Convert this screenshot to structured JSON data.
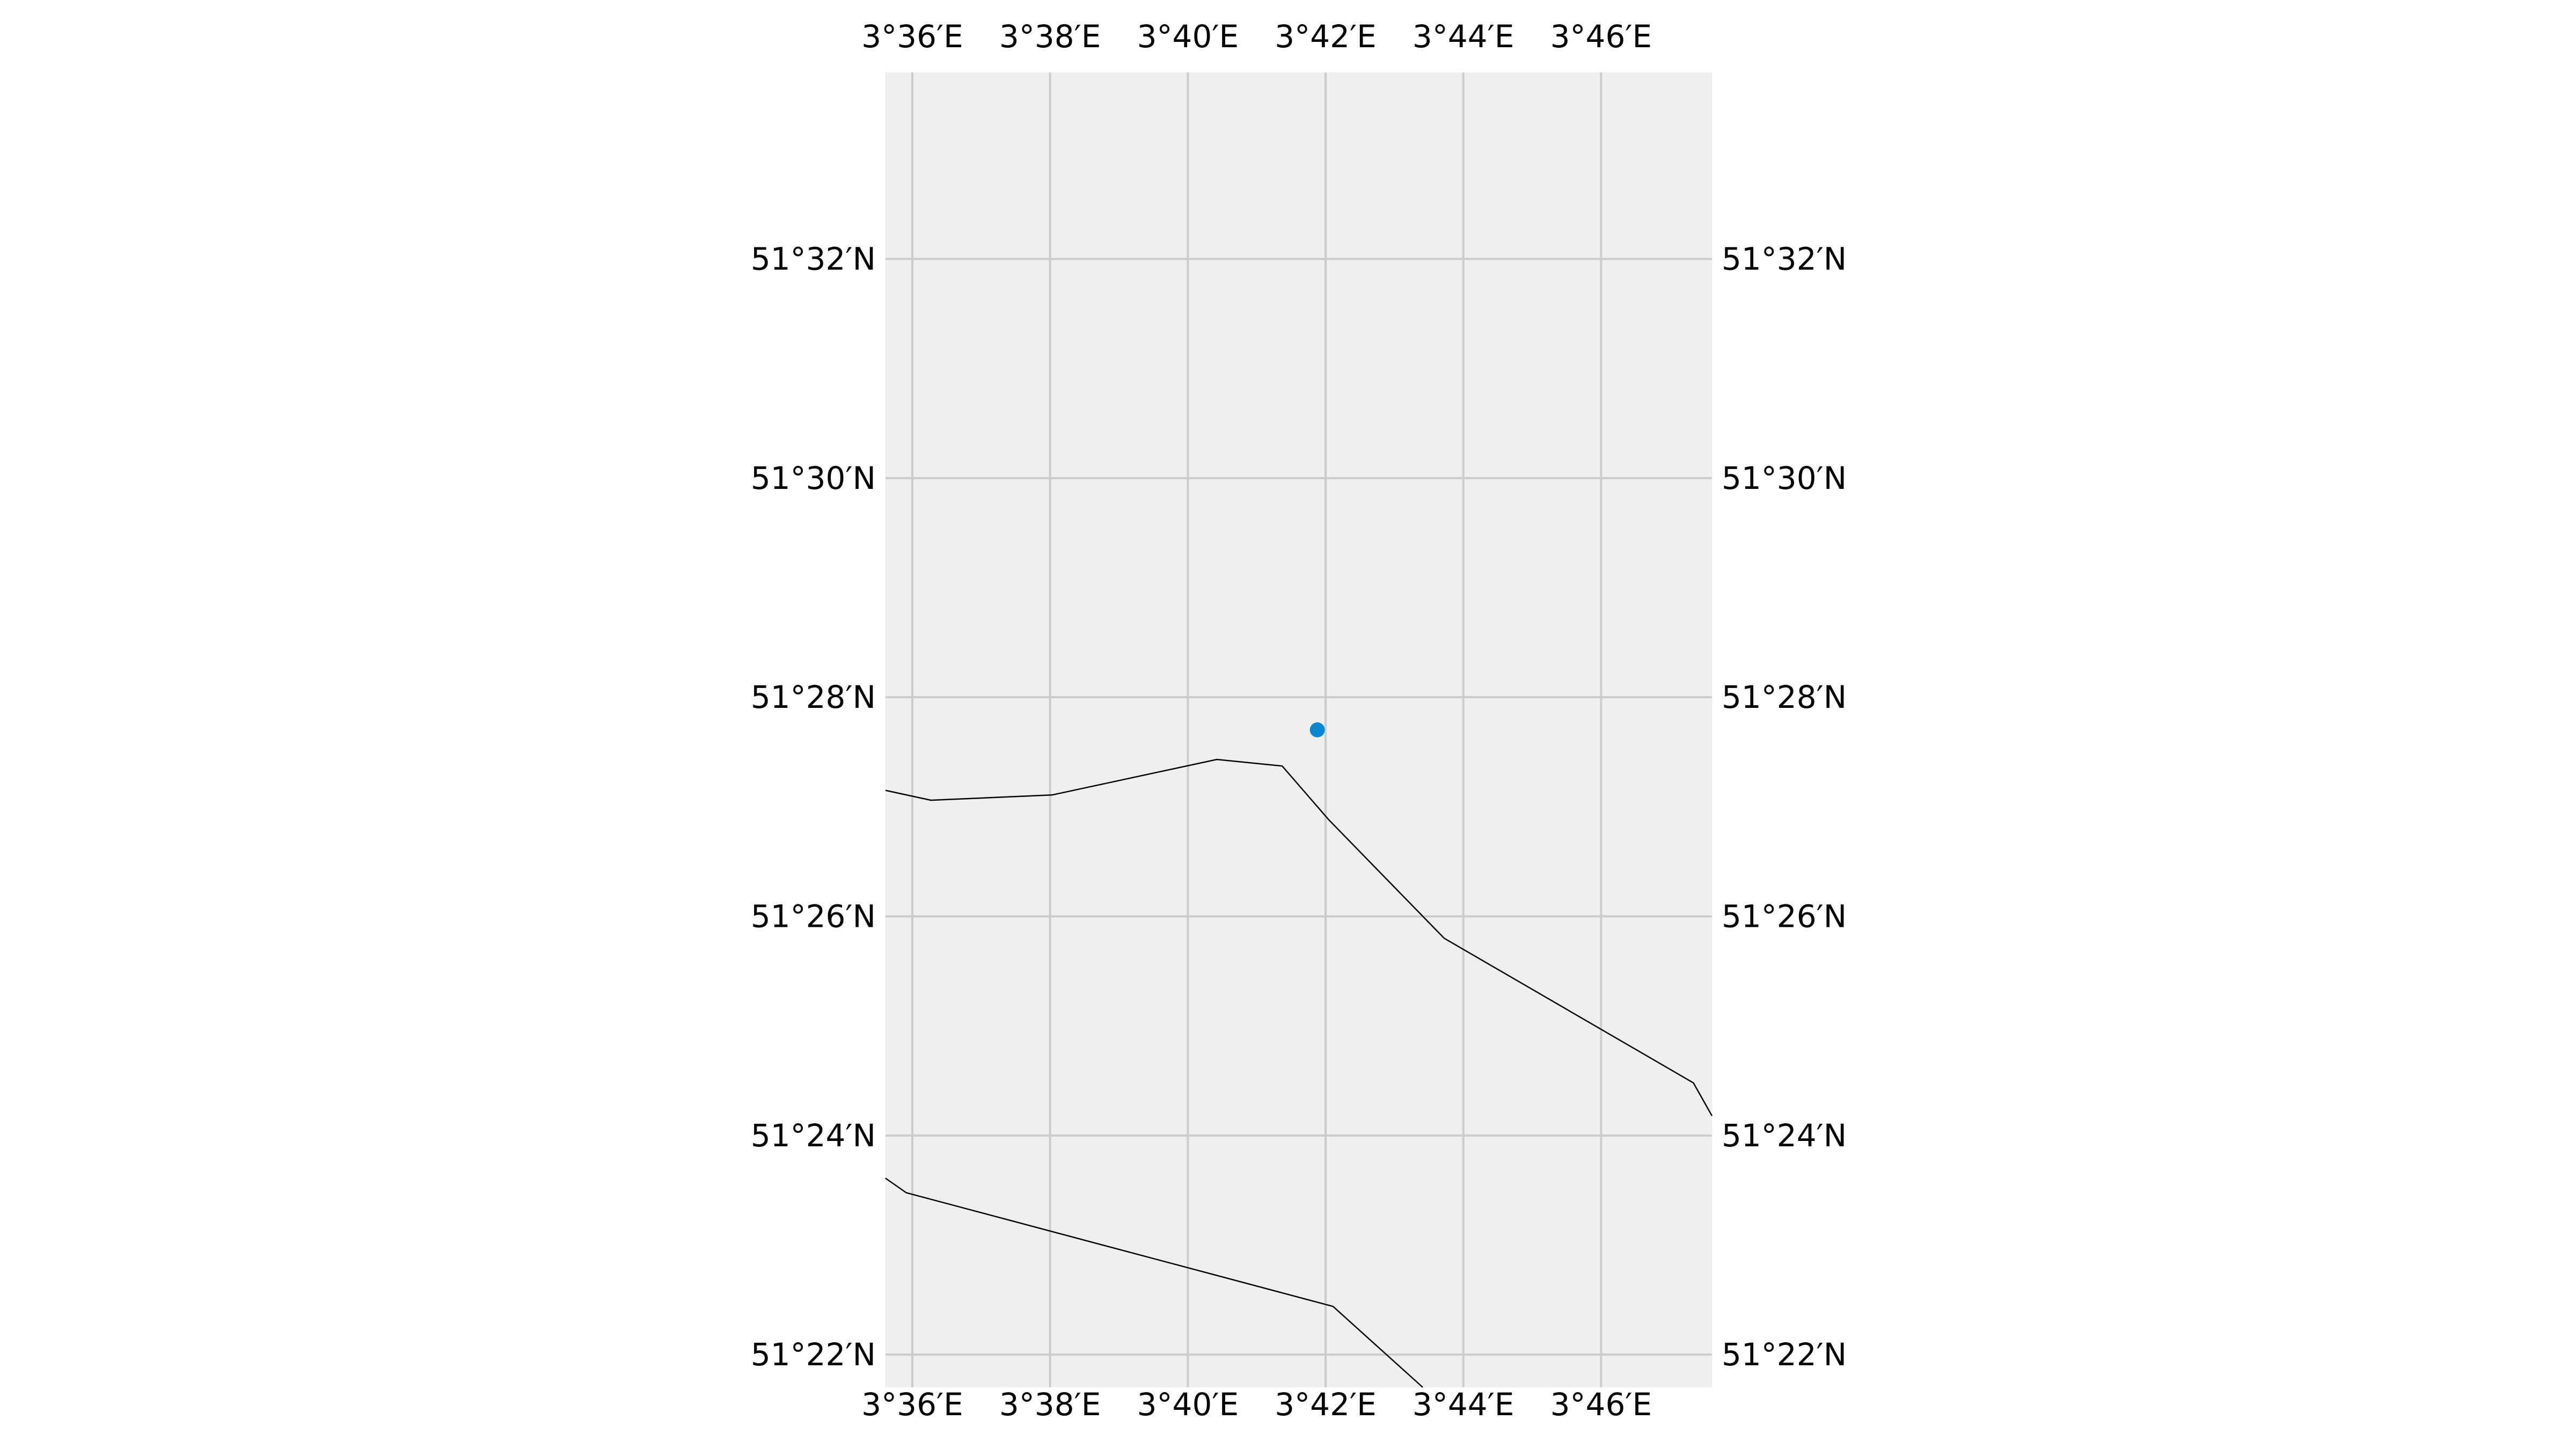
{
  "map": {
    "projection": "PlateCarree",
    "extent": {
      "lon_min": 3.5935,
      "lon_max": 3.7935,
      "lat_min": 51.3617,
      "lat_max": 51.5617
    },
    "background_color": "#efefef",
    "gridline_color": "#cccccc",
    "coastline_color": "#000000",
    "marker_color": "#0b87cf",
    "grid": true,
    "x_ticks": [
      {
        "value": 3.6,
        "label": "3°36′E"
      },
      {
        "value": 3.63333,
        "label": "3°38′E"
      },
      {
        "value": 3.66667,
        "label": "3°40′E"
      },
      {
        "value": 3.7,
        "label": "3°42′E"
      },
      {
        "value": 3.73333,
        "label": "3°44′E"
      },
      {
        "value": 3.76667,
        "label": "3°46′E"
      }
    ],
    "y_ticks": [
      {
        "value": 51.36667,
        "label": "51°22′N"
      },
      {
        "value": 51.4,
        "label": "51°24′N"
      },
      {
        "value": 51.43333,
        "label": "51°26′N"
      },
      {
        "value": 51.46667,
        "label": "51°28′N"
      },
      {
        "value": 51.5,
        "label": "51°30′N"
      },
      {
        "value": 51.53333,
        "label": "51°32′N"
      }
    ],
    "point": {
      "lon": 3.698,
      "lat": 51.4617
    },
    "coastlines": [
      [
        [
          3.5935,
          51.4525
        ],
        [
          3.6045,
          51.451
        ],
        [
          3.6338,
          51.4518
        ],
        [
          3.6737,
          51.4572
        ],
        [
          3.6895,
          51.4562
        ],
        [
          3.7008,
          51.448
        ],
        [
          3.7287,
          51.43
        ],
        [
          3.789,
          51.408
        ],
        [
          3.7935,
          51.403
        ]
      ],
      [
        [
          3.5935,
          51.3935
        ],
        [
          3.5985,
          51.3913
        ],
        [
          3.7018,
          51.374
        ],
        [
          3.7235,
          51.3617
        ]
      ]
    ]
  }
}
